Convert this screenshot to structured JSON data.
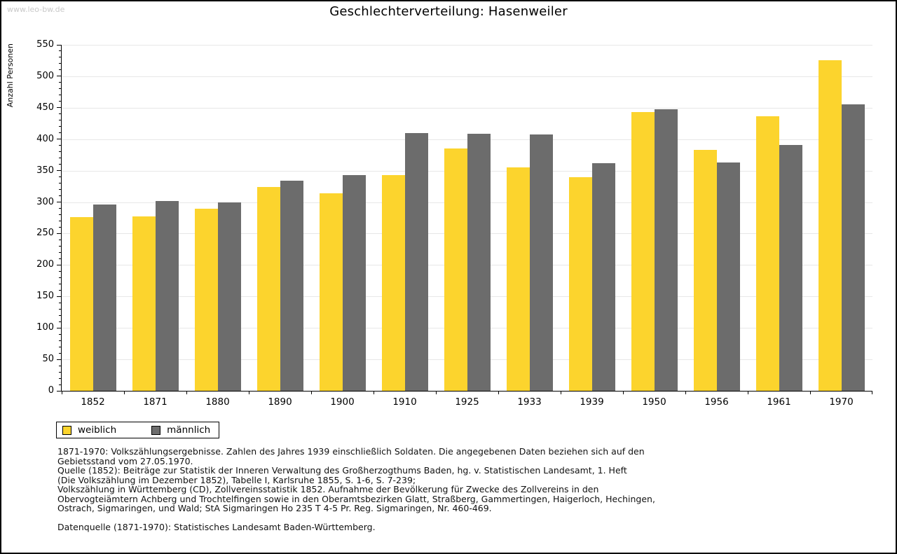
{
  "watermark": "www.leo-bw.de",
  "chart_data": {
    "type": "bar",
    "title": "Geschlechterverteilung: Hasenweiler",
    "xlabel": "",
    "ylabel": "Anzahl Personen",
    "ylim": [
      0,
      550
    ],
    "ytick_major": 50,
    "ytick_minor": 10,
    "grid": true,
    "legend_position": "bottom-left",
    "grid_color": "#e7e7e7",
    "categories": [
      "1852",
      "1871",
      "1880",
      "1890",
      "1900",
      "1910",
      "1925",
      "1933",
      "1939",
      "1950",
      "1956",
      "1961",
      "1970"
    ],
    "series": [
      {
        "name": "weiblich",
        "color": "#FCD42D",
        "values": [
          276,
          277,
          289,
          324,
          314,
          343,
          385,
          355,
          340,
          443,
          383,
          436,
          526
        ]
      },
      {
        "name": "männlich",
        "color": "#6C6C6C",
        "values": [
          296,
          302,
          300,
          334,
          343,
          410,
          409,
          408,
          362,
          448,
          363,
          391,
          455
        ]
      }
    ]
  },
  "footer": {
    "lines": [
      "1871-1970: Volkszählungsergebnisse. Zahlen des Jahres 1939 einschließlich Soldaten. Die angegebenen Daten beziehen sich auf den",
      "Gebietsstand vom 27.05.1970.",
      "Quelle (1852): Beiträge zur Statistik der Inneren Verwaltung des Großherzogthums Baden, hg. v. Statistischen Landesamt, 1. Heft",
      "(Die Volkszählung im Dezember 1852), Tabelle I, Karlsruhe 1855, S. 1-6, S. 7-239;",
      "Volkszählung in Württemberg (CD), Zollvereinsstatistik 1852. Aufnahme der Bevölkerung für Zwecke des Zollvereins in den",
      "Obervogteiämtern Achberg und Trochtelfingen sowie in den Oberamtsbezirken Glatt, Straßberg, Gammertingen, Haigerloch, Hechingen,",
      "Ostrach, Sigmaringen, und Wald; StA Sigmaringen Ho 235 T 4-5 Pr. Reg. Sigmaringen, Nr. 460-469."
    ],
    "datasource": "Datenquelle (1871-1970): Statistisches Landesamt Baden-Württemberg."
  }
}
